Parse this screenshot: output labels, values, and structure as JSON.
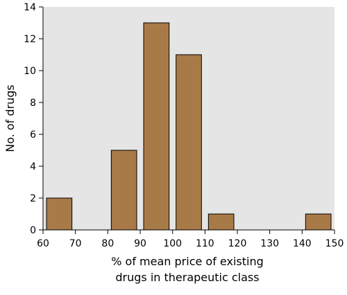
{
  "chart_data": {
    "type": "bar",
    "bins": [
      {
        "from": 60,
        "to": 70,
        "value": 2
      },
      {
        "from": 70,
        "to": 80,
        "value": 0
      },
      {
        "from": 80,
        "to": 90,
        "value": 5
      },
      {
        "from": 90,
        "to": 100,
        "value": 13
      },
      {
        "from": 100,
        "to": 110,
        "value": 11
      },
      {
        "from": 110,
        "to": 120,
        "value": 1
      },
      {
        "from": 120,
        "to": 130,
        "value": 0
      },
      {
        "from": 130,
        "to": 140,
        "value": 0
      },
      {
        "from": 140,
        "to": 150,
        "value": 1
      }
    ],
    "xlim": [
      60,
      150
    ],
    "ylim": [
      0,
      14
    ],
    "xticks": [
      "60",
      "70",
      "80",
      "90",
      "100",
      "110",
      "120",
      "130",
      "140",
      "150"
    ],
    "yticks": [
      "0",
      "2",
      "4",
      "6",
      "8",
      "10",
      "12",
      "14"
    ],
    "xlabel_line1": "% of mean price of existing",
    "xlabel_line2": "drugs in therapeutic class",
    "ylabel": "No. of drugs",
    "grid": false,
    "colors": {
      "bar_fill": "#a87a47",
      "bar_stroke": "#000000",
      "plot_background": "#e5e5e5"
    }
  }
}
